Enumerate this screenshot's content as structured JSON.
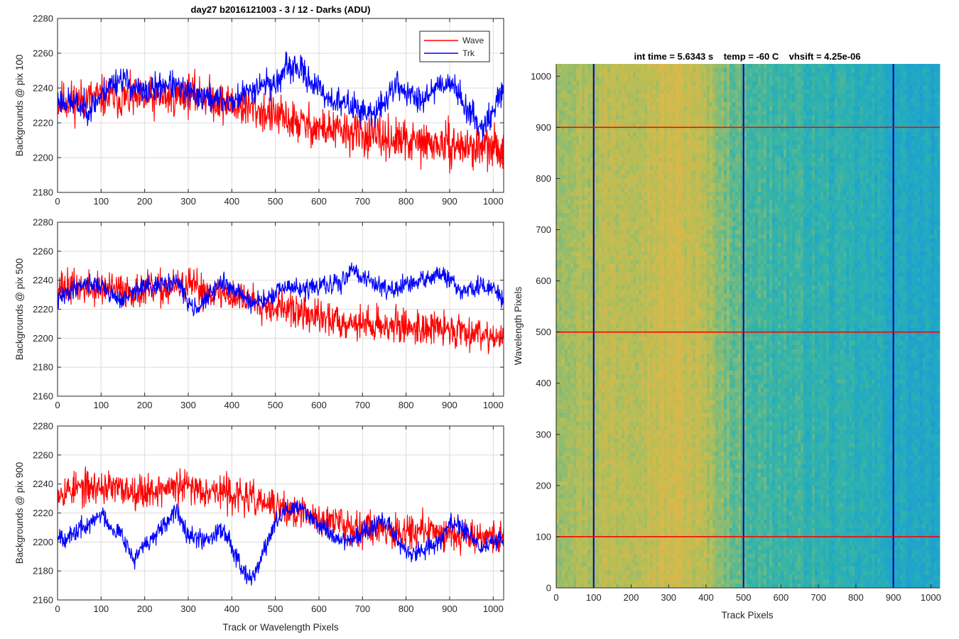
{
  "figure_title": "day27 b2016121003 - 3 / 12 - Darks (ADU)",
  "left_xlabel": "Track or Wavelength Pixels",
  "colors": {
    "wave": "#ff0000",
    "trk": "#0000ff",
    "axis": "#262626",
    "grid": "#dcdcdc"
  },
  "legend": {
    "location": "top-right",
    "entries": [
      "Wave",
      "Trk"
    ]
  },
  "chart_data": [
    {
      "type": "line",
      "ylabel": "Backgrounds @ pix 100",
      "xlim": [
        0,
        1024
      ],
      "ylim": [
        2180,
        2280
      ],
      "grid": true,
      "xticks": [
        0,
        100,
        200,
        300,
        400,
        500,
        600,
        700,
        800,
        900,
        1000
      ],
      "yticks": [
        2180,
        2200,
        2220,
        2240,
        2260,
        2280
      ],
      "series": [
        {
          "name": "Wave",
          "color": "#ff0000",
          "noise": 9,
          "seed": 11,
          "x": [
            0,
            50,
            100,
            150,
            200,
            250,
            300,
            350,
            400,
            450,
            500,
            550,
            600,
            650,
            700,
            750,
            800,
            850,
            900,
            950,
            1000,
            1024
          ],
          "y": [
            2232,
            2233,
            2235,
            2234,
            2233,
            2235,
            2237,
            2234,
            2230,
            2228,
            2224,
            2220,
            2217,
            2215,
            2213,
            2211,
            2209,
            2208,
            2207,
            2206,
            2205,
            2205
          ]
        },
        {
          "name": "Trk",
          "color": "#0000ff",
          "noise": 6,
          "seed": 23,
          "x": [
            0,
            25,
            50,
            75,
            100,
            125,
            150,
            175,
            200,
            225,
            250,
            275,
            300,
            325,
            350,
            375,
            400,
            425,
            450,
            475,
            500,
            525,
            550,
            575,
            600,
            625,
            650,
            675,
            700,
            725,
            750,
            775,
            800,
            825,
            850,
            875,
            900,
            925,
            950,
            975,
            1000,
            1024
          ],
          "y": [
            2233,
            2232,
            2230,
            2228,
            2236,
            2243,
            2246,
            2240,
            2237,
            2240,
            2243,
            2240,
            2237,
            2236,
            2234,
            2233,
            2232,
            2236,
            2240,
            2243,
            2242,
            2251,
            2252,
            2246,
            2239,
            2234,
            2231,
            2230,
            2227,
            2224,
            2232,
            2242,
            2238,
            2233,
            2237,
            2242,
            2244,
            2235,
            2224,
            2218,
            2226,
            2242
          ]
        }
      ]
    },
    {
      "type": "line",
      "ylabel": "Backgrounds @ pix 500",
      "xlim": [
        0,
        1024
      ],
      "ylim": [
        2160,
        2280
      ],
      "grid": true,
      "xticks": [
        0,
        100,
        200,
        300,
        400,
        500,
        600,
        700,
        800,
        900,
        1000
      ],
      "yticks": [
        2160,
        2180,
        2200,
        2220,
        2240,
        2260,
        2280
      ],
      "series": [
        {
          "name": "Wave",
          "color": "#ff0000",
          "noise": 9,
          "seed": 37,
          "x": [
            0,
            50,
            100,
            150,
            200,
            250,
            300,
            350,
            400,
            450,
            500,
            550,
            600,
            650,
            700,
            750,
            800,
            850,
            900,
            950,
            1000,
            1024
          ],
          "y": [
            2236,
            2235,
            2234,
            2233,
            2232,
            2234,
            2236,
            2232,
            2229,
            2226,
            2222,
            2218,
            2214,
            2212,
            2210,
            2209,
            2208,
            2207,
            2206,
            2205,
            2202,
            2198
          ]
        },
        {
          "name": "Trk",
          "color": "#0000ff",
          "noise": 5,
          "seed": 41,
          "x": [
            0,
            25,
            50,
            75,
            100,
            125,
            150,
            175,
            200,
            225,
            250,
            275,
            300,
            325,
            350,
            375,
            400,
            425,
            450,
            475,
            500,
            525,
            550,
            575,
            600,
            625,
            650,
            675,
            700,
            725,
            750,
            775,
            800,
            825,
            850,
            875,
            900,
            925,
            950,
            975,
            1000,
            1024
          ],
          "y": [
            2226,
            2232,
            2237,
            2238,
            2236,
            2230,
            2226,
            2232,
            2236,
            2235,
            2238,
            2239,
            2225,
            2221,
            2230,
            2238,
            2235,
            2229,
            2224,
            2226,
            2230,
            2236,
            2234,
            2234,
            2236,
            2236,
            2238,
            2249,
            2242,
            2238,
            2236,
            2232,
            2237,
            2238,
            2242,
            2244,
            2240,
            2232,
            2234,
            2236,
            2234,
            2226
          ]
        }
      ]
    },
    {
      "type": "line",
      "ylabel": "Backgrounds @ pix 900",
      "xlim": [
        0,
        1024
      ],
      "ylim": [
        2160,
        2280
      ],
      "grid": true,
      "xticks": [
        0,
        100,
        200,
        300,
        400,
        500,
        600,
        700,
        800,
        900,
        1000
      ],
      "yticks": [
        2160,
        2180,
        2200,
        2220,
        2240,
        2260,
        2280
      ],
      "series": [
        {
          "name": "Wave",
          "color": "#ff0000",
          "noise": 9,
          "seed": 53,
          "x": [
            0,
            50,
            100,
            150,
            200,
            250,
            300,
            350,
            400,
            450,
            500,
            550,
            600,
            650,
            700,
            750,
            800,
            850,
            900,
            950,
            1000,
            1024
          ],
          "y": [
            2235,
            2237,
            2238,
            2236,
            2235,
            2237,
            2238,
            2236,
            2233,
            2229,
            2224,
            2220,
            2216,
            2213,
            2210,
            2209,
            2208,
            2207,
            2206,
            2205,
            2204,
            2203
          ]
        },
        {
          "name": "Trk",
          "color": "#0000ff",
          "noise": 5,
          "seed": 67,
          "x": [
            0,
            25,
            50,
            75,
            100,
            125,
            150,
            175,
            200,
            225,
            250,
            275,
            300,
            325,
            350,
            375,
            400,
            425,
            450,
            475,
            500,
            525,
            550,
            575,
            600,
            625,
            650,
            675,
            700,
            725,
            750,
            775,
            800,
            825,
            850,
            875,
            900,
            925,
            950,
            975,
            1000,
            1024
          ],
          "y": [
            2206,
            2202,
            2209,
            2212,
            2220,
            2210,
            2205,
            2187,
            2198,
            2204,
            2212,
            2222,
            2206,
            2202,
            2203,
            2210,
            2198,
            2181,
            2175,
            2195,
            2213,
            2222,
            2224,
            2220,
            2212,
            2206,
            2201,
            2202,
            2206,
            2210,
            2215,
            2204,
            2193,
            2192,
            2196,
            2200,
            2213,
            2210,
            2204,
            2195,
            2200,
            2202
          ]
        }
      ]
    },
    {
      "type": "heatmap",
      "title": "int time = 5.6343 s    temp = -60 C    vhsift = 4.25e-06",
      "xlabel": "Track Pixels",
      "ylabel": "Wavelength Pixels",
      "xlim": [
        0,
        1024
      ],
      "ylim": [
        0,
        1024
      ],
      "xticks": [
        0,
        100,
        200,
        300,
        400,
        500,
        600,
        700,
        800,
        900,
        1000
      ],
      "yticks": [
        0,
        100,
        200,
        300,
        400,
        500,
        600,
        700,
        800,
        900,
        1000
      ],
      "colormap": [
        "#2396d6",
        "#1fa9c5",
        "#39b5a4",
        "#7cbb7c",
        "#b5be57",
        "#dbb84a"
      ],
      "column_profile": {
        "x": [
          0,
          50,
          100,
          150,
          200,
          250,
          300,
          350,
          400,
          450,
          500,
          550,
          600,
          650,
          700,
          750,
          800,
          850,
          900,
          950,
          1024
        ],
        "level": [
          0.74,
          0.78,
          0.8,
          0.84,
          0.86,
          0.88,
          0.93,
          0.91,
          0.78,
          0.62,
          0.48,
          0.42,
          0.4,
          0.36,
          0.33,
          0.3,
          0.28,
          0.25,
          0.22,
          0.19,
          0.15
        ]
      },
      "vertical_lines": {
        "x": [
          100,
          500,
          900
        ],
        "color": "#0000aa"
      },
      "horizontal_lines": {
        "y": [
          100,
          500,
          900
        ],
        "color": "#ff0000"
      }
    }
  ]
}
